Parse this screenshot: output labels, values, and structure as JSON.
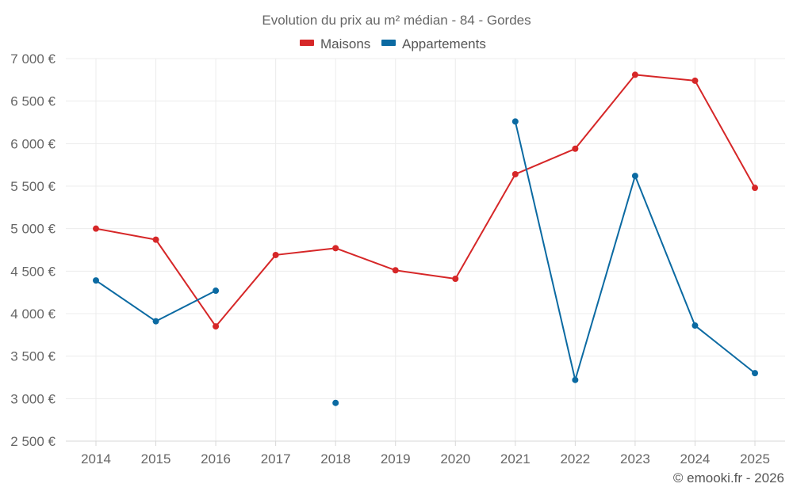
{
  "chart_data": {
    "type": "line",
    "title": "Evolution du prix au m² médian - 84 - Gordes",
    "categories": [
      "2014",
      "2015",
      "2016",
      "2017",
      "2018",
      "2019",
      "2020",
      "2021",
      "2022",
      "2023",
      "2024",
      "2025"
    ],
    "series": [
      {
        "name": "Maisons",
        "color": "#d62728",
        "values": [
          5000,
          4870,
          3850,
          4690,
          4770,
          4510,
          4410,
          5640,
          5940,
          6810,
          6740,
          5480
        ]
      },
      {
        "name": "Appartements",
        "color": "#0b6aa2",
        "values": [
          4390,
          3910,
          4270,
          null,
          2950,
          null,
          null,
          6260,
          3220,
          5620,
          3860,
          3300
        ]
      }
    ],
    "ylim": [
      2500,
      7000
    ],
    "yticks": [
      2500,
      3000,
      3500,
      4000,
      4500,
      5000,
      5500,
      6000,
      6500,
      7000
    ],
    "ytick_labels": [
      "2 500 €",
      "3 000 €",
      "3 500 €",
      "4 000 €",
      "4 500 €",
      "5 000 €",
      "5 500 €",
      "6 000 €",
      "6 500 €",
      "7 000 €"
    ],
    "xlabel": "",
    "ylabel": "",
    "grid": true,
    "legend": "top-center"
  },
  "footer": {
    "copyright": "© emooki.fr - 2026"
  }
}
